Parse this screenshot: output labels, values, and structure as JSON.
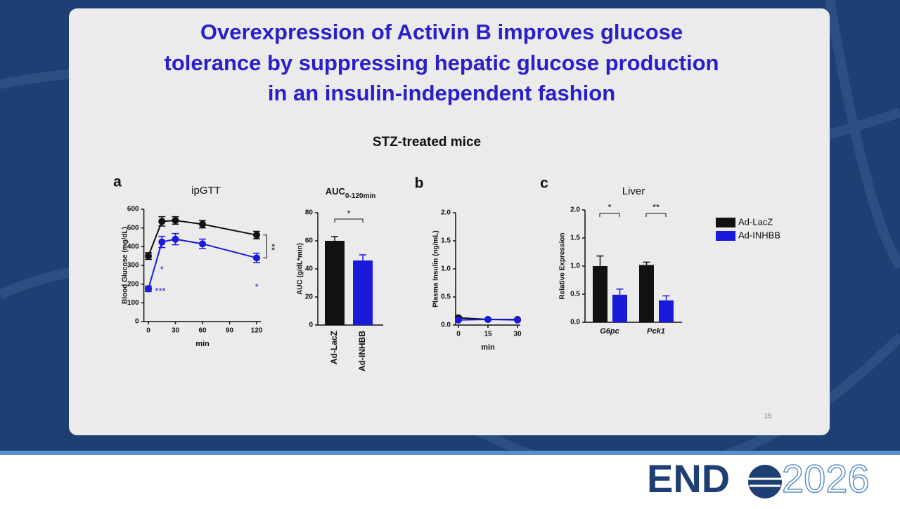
{
  "slide": {
    "title": [
      "Overexpression of Activin B improves glucose",
      "tolerance by suppressing hepatic glucose production",
      "in an insulin-independent fashion"
    ],
    "subtitle": "STZ-treated mice",
    "panels": [
      "a",
      "b",
      "c"
    ],
    "page_number": "15",
    "logo": {
      "text": "END",
      "year": "2026"
    }
  },
  "chart_data": [
    {
      "type": "line",
      "title": "ipGTT",
      "xlabel": "min",
      "ylabel": "Blood Glucose (mg/dL)",
      "x": [
        0,
        15,
        30,
        60,
        120
      ],
      "xlim": [
        -5,
        125
      ],
      "xticks": [
        0,
        30,
        60,
        90,
        120
      ],
      "ylim": [
        0,
        600
      ],
      "yticks": [
        0,
        100,
        200,
        300,
        400,
        500,
        600
      ],
      "series": [
        {
          "color": "#111111",
          "values": [
            350,
            535,
            540,
            520,
            462
          ],
          "errors": [
            18,
            25,
            20,
            20,
            20
          ]
        },
        {
          "color": "#1a1adb",
          "values": [
            175,
            425,
            440,
            415,
            340
          ],
          "errors": [
            15,
            30,
            30,
            25,
            25
          ]
        }
      ],
      "annotations": [
        "***",
        "*",
        "*",
        "**"
      ]
    },
    {
      "type": "bar",
      "title": "AUC",
      "title_subscript": "0-120min",
      "ylabel": "AUC (g/dL*min)",
      "categories": [
        "Ad-LacZ",
        "Ad-INHBB"
      ],
      "values": [
        60,
        46
      ],
      "errors": [
        3,
        4
      ],
      "colors": [
        "#111111",
        "#1a1adb"
      ],
      "ylim": [
        0,
        80
      ],
      "yticks": [
        0,
        20,
        40,
        60,
        80
      ],
      "annotations": [
        "*"
      ]
    },
    {
      "type": "line",
      "ylabel": "Plasma Insulin (ng/mL)",
      "xlabel": "min",
      "x": [
        0,
        15,
        30
      ],
      "xlim": [
        0,
        30
      ],
      "xticks": [
        0,
        15,
        30
      ],
      "ylim": [
        0,
        2
      ],
      "yticks": [
        {
          "value": 0,
          "label": "0.0"
        },
        0.5,
        {
          "value": 1,
          "label": "1.0"
        },
        1.5,
        {
          "value": 2,
          "label": "2.0"
        }
      ],
      "series": [
        {
          "color": "#111111",
          "values": [
            0.13,
            0.1,
            0.1
          ],
          "errors": [
            0.02,
            0.01,
            0.01
          ]
        },
        {
          "color": "#1a1adb",
          "values": [
            0.09,
            0.1,
            0.09
          ],
          "errors": [
            0.01,
            0.01,
            0.01
          ]
        }
      ],
      "annotations": []
    },
    {
      "type": "groupbar",
      "title": "Liver",
      "ylabel": "Relative Expression",
      "categories": [
        "G6pc",
        "Pck1"
      ],
      "ylim": [
        0,
        2
      ],
      "yticks": [
        {
          "value": 0,
          "label": "0.0"
        },
        0.5,
        {
          "value": 1,
          "label": "1.0"
        },
        1.5,
        {
          "value": 2,
          "label": "2.0"
        }
      ],
      "series": [
        {
          "name": "Ad-LacZ",
          "color": "#111111",
          "values": [
            1.0,
            1.02
          ],
          "errors": [
            0.18,
            0.05
          ]
        },
        {
          "name": "Ad-INHBB",
          "color": "#1a1adb",
          "values": [
            0.49,
            0.39
          ],
          "errors": [
            0.1,
            0.08
          ]
        }
      ],
      "legend": "right",
      "annotations": [
        "*",
        "**"
      ]
    }
  ]
}
